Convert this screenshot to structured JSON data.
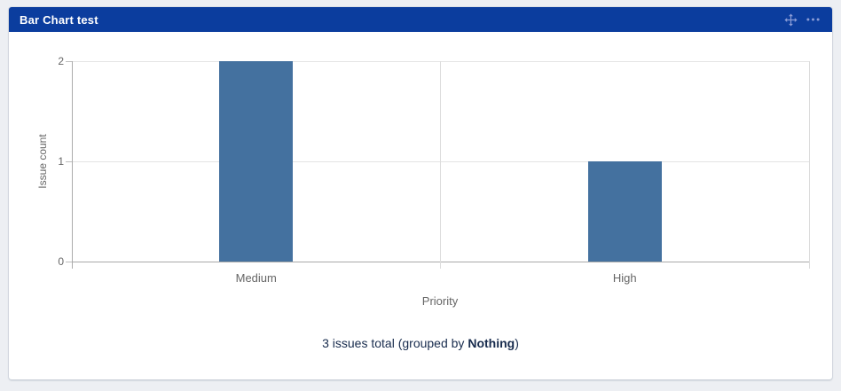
{
  "widget": {
    "title": "Bar Chart test",
    "header_icons": [
      {
        "name": "move-icon"
      },
      {
        "name": "more-options-icon"
      }
    ],
    "colors": {
      "header_bg": "#0b3d9e",
      "header_text": "#ffffff",
      "icon": "#8a9cd6",
      "card_bg": "#ffffff",
      "page_bg": "#edeff3"
    }
  },
  "chart_data": {
    "type": "bar",
    "title": "Bar Chart test",
    "categories": [
      "Medium",
      "High"
    ],
    "values": [
      2,
      1
    ],
    "xlabel": "Priority",
    "ylabel": "Issue count",
    "ylim": [
      0,
      2
    ],
    "yticks": [
      0,
      1,
      2
    ],
    "bar_color": "#44719f",
    "grid": true,
    "gridline_color": "#e4e4e4",
    "axis_color": "#a9a9a9",
    "legend_position": "none"
  },
  "footer": {
    "prefix": "3 issues total (grouped by ",
    "group_by": "Nothing",
    "suffix": ")"
  }
}
